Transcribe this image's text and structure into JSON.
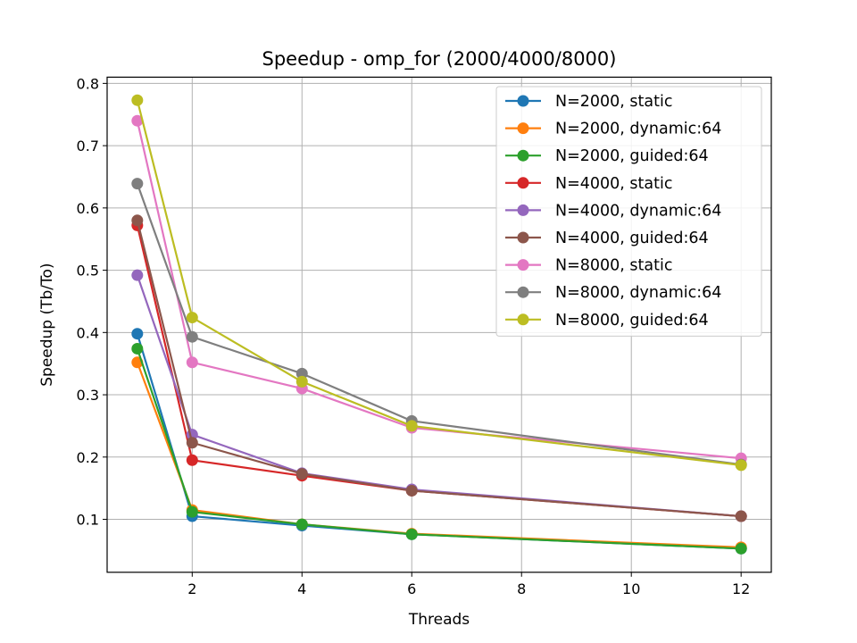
{
  "chart_data": {
    "type": "line",
    "title": "Speedup - omp_for (2000/4000/8000)",
    "xlabel": "Threads",
    "ylabel": "Speedup (Tb/To)",
    "xlim": [
      0.45,
      12.55
    ],
    "ylim": [
      0.015,
      0.81
    ],
    "xticks": [
      "2",
      "4",
      "6",
      "8",
      "10",
      "12"
    ],
    "xtick_values": [
      2,
      4,
      6,
      8,
      10,
      12
    ],
    "yticks": [
      "0.1",
      "0.2",
      "0.3",
      "0.4",
      "0.5",
      "0.6",
      "0.7",
      "0.8"
    ],
    "ytick_values": [
      0.1,
      0.2,
      0.3,
      0.4,
      0.5,
      0.6,
      0.7,
      0.8
    ],
    "grid": true,
    "legend_position": "top-right",
    "x": [
      1,
      2,
      4,
      6,
      12
    ],
    "series": [
      {
        "name": "N=2000, static",
        "color": "#1f77b4",
        "values": [
          0.398,
          0.105,
          0.09,
          0.076,
          0.053
        ]
      },
      {
        "name": "N=2000, dynamic:64",
        "color": "#ff7f0e",
        "values": [
          0.352,
          0.115,
          0.092,
          0.077,
          0.055
        ]
      },
      {
        "name": "N=2000, guided:64",
        "color": "#2ca02c",
        "values": [
          0.374,
          0.112,
          0.092,
          0.076,
          0.053
        ]
      },
      {
        "name": "N=4000, static",
        "color": "#d62728",
        "values": [
          0.572,
          0.195,
          0.17,
          0.146,
          0.105
        ]
      },
      {
        "name": "N=4000, dynamic:64",
        "color": "#9467bd",
        "values": [
          0.492,
          0.236,
          0.174,
          0.148,
          0.105
        ]
      },
      {
        "name": "N=4000, guided:64",
        "color": "#8c564b",
        "values": [
          0.58,
          0.223,
          0.173,
          0.146,
          0.105
        ]
      },
      {
        "name": "N=8000, static",
        "color": "#e377c2",
        "values": [
          0.74,
          0.352,
          0.31,
          0.247,
          0.198
        ]
      },
      {
        "name": "N=8000, dynamic:64",
        "color": "#7f7f7f",
        "values": [
          0.639,
          0.393,
          0.334,
          0.258,
          0.188
        ]
      },
      {
        "name": "N=8000, guided:64",
        "color": "#bcbd22",
        "values": [
          0.773,
          0.424,
          0.321,
          0.25,
          0.187
        ]
      }
    ]
  }
}
